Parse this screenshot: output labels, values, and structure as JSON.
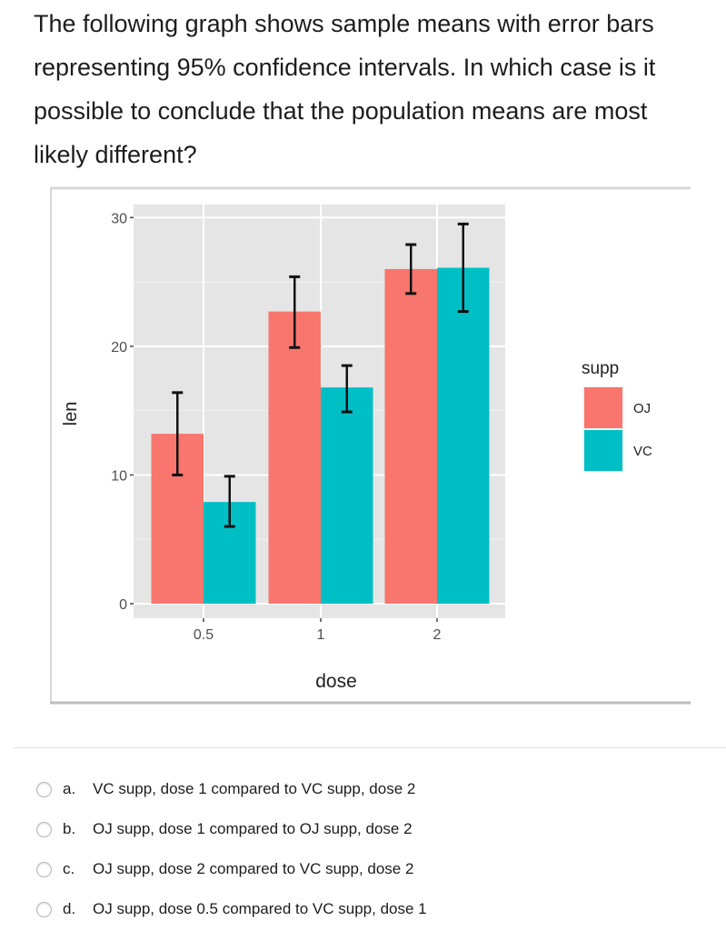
{
  "question": {
    "text": "The following graph shows sample means with error bars representing 95% confidence intervals. In which case is it possible to conclude that the population means are most likely different?"
  },
  "options": [
    {
      "letter": "a.",
      "text": "VC supp, dose 1 compared to VC supp, dose 2"
    },
    {
      "letter": "b.",
      "text": "OJ supp, dose 1 compared to OJ supp, dose 2"
    },
    {
      "letter": "c.",
      "text": "OJ supp, dose 2 compared to VC supp, dose 2"
    },
    {
      "letter": "d.",
      "text": "OJ supp, dose 0.5 compared to VC supp, dose 1"
    }
  ],
  "chart_data": {
    "type": "bar",
    "xlabel": "dose",
    "ylabel": "len",
    "categories": [
      "0.5",
      "1",
      "2"
    ],
    "ylim": [
      0,
      31
    ],
    "yticks": [
      "0",
      "10",
      "20",
      "30"
    ],
    "grid": true,
    "legend": {
      "title": "supp",
      "placement": "right"
    },
    "series": [
      {
        "name": "OJ",
        "color": "#F8766D",
        "values": [
          13.2,
          22.7,
          26.0
        ],
        "ci_low": [
          10.0,
          19.9,
          24.1
        ],
        "ci_high": [
          16.4,
          25.4,
          27.9
        ]
      },
      {
        "name": "VC",
        "color": "#00BFC4",
        "values": [
          7.9,
          16.8,
          26.1
        ],
        "ci_low": [
          6.0,
          14.9,
          22.7
        ],
        "ci_high": [
          9.9,
          18.5,
          29.5
        ]
      }
    ]
  }
}
